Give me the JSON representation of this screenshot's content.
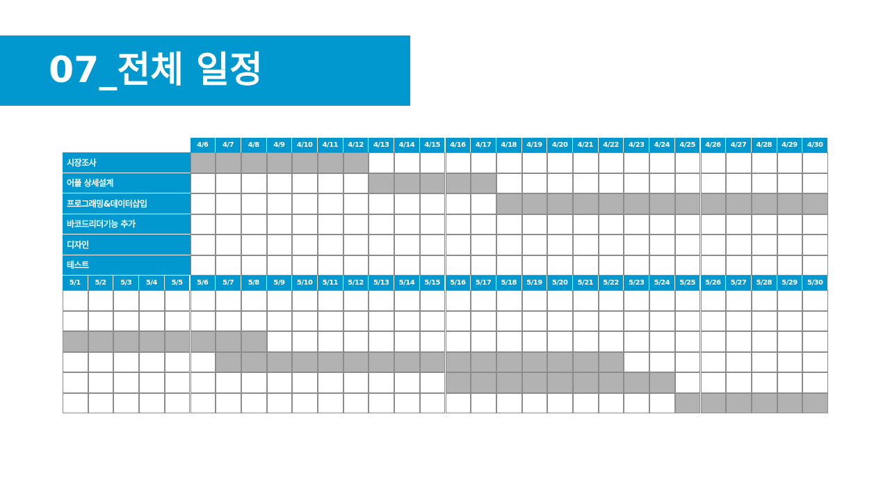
{
  "slide": {
    "title": "07_전체 일정"
  },
  "schedule": {
    "april_dates": [
      "4/6",
      "4/7",
      "4/8",
      "4/9",
      "4/10",
      "4/11",
      "4/12",
      "4/13",
      "4/14",
      "4/15",
      "4/16",
      "4/17",
      "4/18",
      "4/19",
      "4/20",
      "4/21",
      "4/22",
      "4/23",
      "4/24",
      "4/25",
      "4/26",
      "4/27",
      "4/28",
      "4/29",
      "4/30"
    ],
    "may_dates": [
      "5/1",
      "5/2",
      "5/3",
      "5/4",
      "5/5",
      "5/6",
      "5/7",
      "5/8",
      "5/9",
      "5/10",
      "5/11",
      "5/12",
      "5/13",
      "5/14",
      "5/15",
      "5/16",
      "5/17",
      "5/18",
      "5/19",
      "5/20",
      "5/21",
      "5/22",
      "5/23",
      "5/24",
      "5/25",
      "5/26",
      "5/27",
      "5/28",
      "5/29",
      "5/30"
    ],
    "tasks": [
      {
        "label": "시장조사",
        "april": [
          "4/6",
          "4/12"
        ],
        "may": null
      },
      {
        "label": "어플 상세설계",
        "april": [
          "4/13",
          "4/17"
        ],
        "may": null
      },
      {
        "label": "프로그래밍&데이터삽입",
        "april": [
          "4/18",
          "4/30"
        ],
        "may": [
          "5/1",
          "5/8"
        ]
      },
      {
        "label": "바코드리더기능 추가",
        "april": null,
        "may": [
          "5/7",
          "5/22"
        ]
      },
      {
        "label": "디자인",
        "april": null,
        "may": [
          "5/16",
          "5/24"
        ]
      },
      {
        "label": "테스트",
        "april": null,
        "may": [
          "5/25",
          "5/30"
        ]
      }
    ],
    "colors": {
      "header": "#0098ce",
      "bar": "#b2b2b2",
      "grid": "#8c8c8c"
    }
  }
}
